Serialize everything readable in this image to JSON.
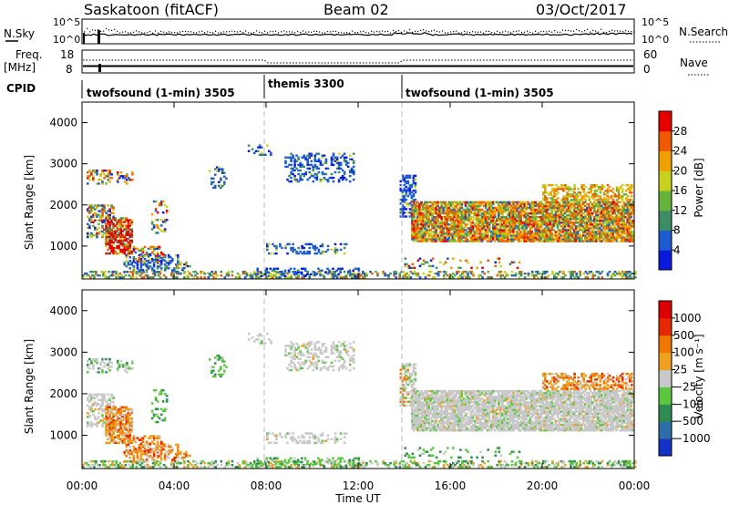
{
  "header": {
    "station": "Saskatoon (fitACF)",
    "beam": "Beam 02",
    "date": "03/Oct/2017"
  },
  "strip": {
    "nsky_label": "N.Sky",
    "nsearch_label": "N.Search",
    "left_ticks": [
      "10^5",
      "10^0"
    ],
    "right_ticks": [
      "10^5",
      "10^0"
    ],
    "freq_label": "Freq.",
    "freq_unit": "[MHz]",
    "freq_ticks": [
      "18",
      "8"
    ],
    "nave_label": "Nave",
    "nave_ticks": [
      "60",
      "0"
    ]
  },
  "cpid": {
    "label": "CPID",
    "segments": [
      {
        "name": "twofsound (1-min) 3505",
        "start_hour": 0,
        "end_hour": 8
      },
      {
        "name": "themis 3300",
        "start_hour": 8,
        "end_hour": 14
      },
      {
        "name": "twofsound (1-min) 3505",
        "start_hour": 14,
        "end_hour": 24
      }
    ]
  },
  "chart_data": [
    {
      "type": "heatmap",
      "name": "power",
      "ylabel": "Slant Range [km]",
      "ylim": [
        200,
        4500
      ],
      "yticks": [
        "1000",
        "2000",
        "3000",
        "4000"
      ],
      "colorbar_label": "Power [dB]",
      "colorbar_ticks": [
        "28",
        "24",
        "20",
        "16",
        "12",
        "8",
        "4"
      ],
      "colors": [
        "#0a1adc",
        "#1e5ad2",
        "#3c8c64",
        "#64b43c",
        "#c8d21e",
        "#f0a000",
        "#f05a00",
        "#e60000"
      ]
    },
    {
      "type": "heatmap",
      "name": "velocity",
      "ylabel": "Slant Range [km]",
      "ylim": [
        200,
        4500
      ],
      "yticks": [
        "1000",
        "2000",
        "3000",
        "4000"
      ],
      "xlabel": "Time UT",
      "xticks": [
        "00:00",
        "04:00",
        "08:00",
        "12:00",
        "16:00",
        "20:00",
        "00:00"
      ],
      "colorbar_label": "Velocity [m s⁻¹]",
      "colorbar_ticks": [
        "1000",
        "500",
        "100",
        "25",
        "−25",
        "−100",
        "−500",
        "−1000"
      ],
      "colors": [
        "#1432c8",
        "#2e6ea8",
        "#2e8c50",
        "#5ac83c",
        "#c8c8c8",
        "#f0a020",
        "#f07800",
        "#e62800",
        "#dc0000"
      ]
    }
  ]
}
